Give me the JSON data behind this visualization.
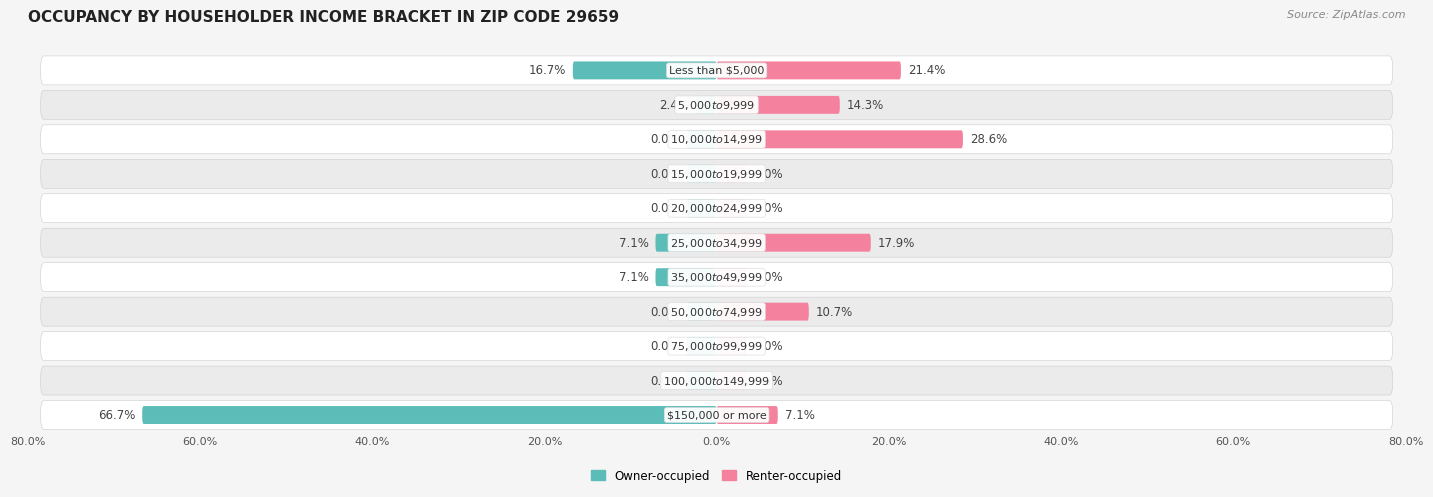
{
  "title": "OCCUPANCY BY HOUSEHOLDER INCOME BRACKET IN ZIP CODE 29659",
  "source": "Source: ZipAtlas.com",
  "categories": [
    "Less than $5,000",
    "$5,000 to $9,999",
    "$10,000 to $14,999",
    "$15,000 to $19,999",
    "$20,000 to $24,999",
    "$25,000 to $34,999",
    "$35,000 to $49,999",
    "$50,000 to $74,999",
    "$75,000 to $99,999",
    "$100,000 to $149,999",
    "$150,000 or more"
  ],
  "owner_values": [
    16.7,
    2.4,
    0.0,
    0.0,
    0.0,
    7.1,
    7.1,
    0.0,
    0.0,
    0.0,
    66.7
  ],
  "renter_values": [
    21.4,
    14.3,
    28.6,
    0.0,
    0.0,
    17.9,
    0.0,
    10.7,
    0.0,
    0.0,
    7.1
  ],
  "owner_color": "#5bbcb8",
  "renter_color_strong": "#f4829e",
  "renter_color_weak": "#f0afc0",
  "renter_strong_threshold": 5.0,
  "owner_label": "Owner-occupied",
  "renter_label": "Renter-occupied",
  "bar_height": 0.52,
  "owner_stub": 3.5,
  "renter_stub": 3.5,
  "xlim_left": -80,
  "xlim_right": 80,
  "background_color": "#f5f5f5",
  "row_bg_colors": [
    "#ffffff",
    "#ebebeb"
  ],
  "row_border_color": "#cccccc",
  "title_fontsize": 11,
  "source_fontsize": 8,
  "label_fontsize": 8.5,
  "category_fontsize": 8,
  "axis_fontsize": 8,
  "axis_ticks": [
    -80,
    -60,
    -40,
    -20,
    0,
    20,
    40,
    60,
    80
  ]
}
